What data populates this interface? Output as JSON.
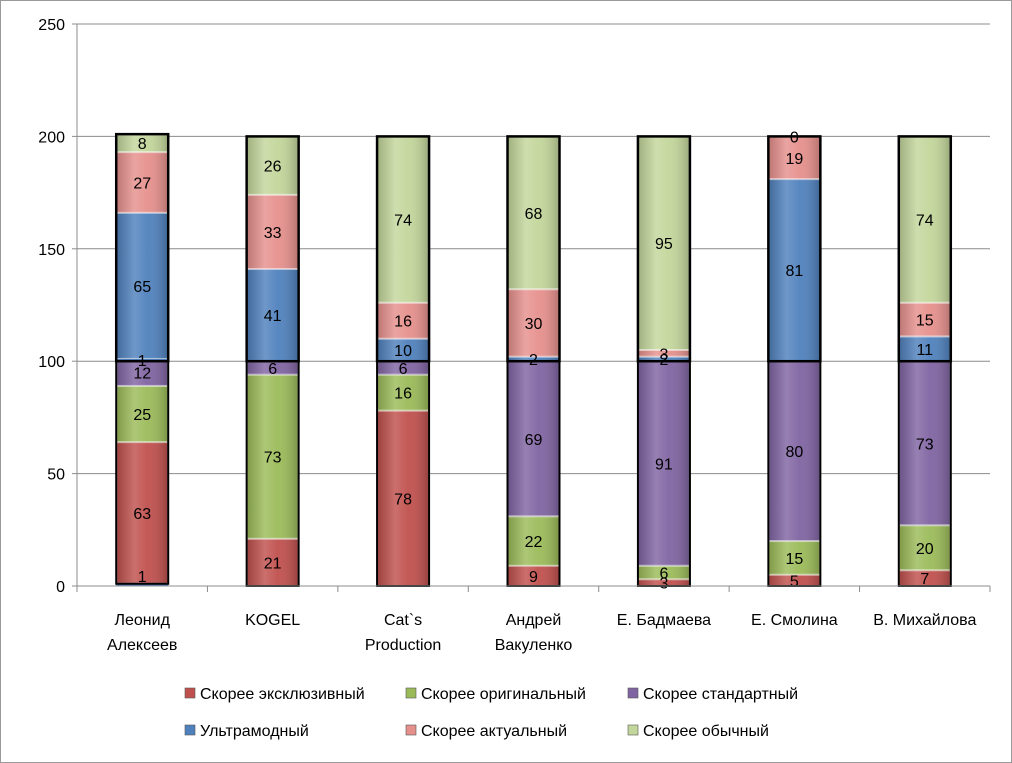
{
  "chart_data": {
    "type": "bar",
    "stacked": true,
    "categories": [
      [
        "Леонид",
        "Алексеев"
      ],
      [
        "KOGEL"
      ],
      [
        "Cat`s",
        "Production"
      ],
      [
        "Андрей",
        "Вакуленко"
      ],
      [
        "Е. Бадмаева"
      ],
      [
        "Е. Смолина"
      ],
      [
        "В. Михайлова"
      ]
    ],
    "ylim": [
      0,
      250
    ],
    "yticks": [
      0,
      50,
      100,
      150,
      200,
      250
    ],
    "grid": true,
    "legend_position": "bottom",
    "groups": [
      {
        "series": [
          {
            "name": "Скорее эксклюзивный",
            "color": "#c0504d",
            "values": [
              63,
              21,
              78,
              9,
              3,
              5,
              7
            ]
          },
          {
            "name": "Скорее оригинальный",
            "color": "#9bbb59",
            "values": [
              25,
              73,
              16,
              22,
              6,
              15,
              20
            ]
          },
          {
            "name": "Скорее стандартный",
            "color": "#8064a2",
            "values": [
              12,
              6,
              6,
              69,
              91,
              80,
              73
            ]
          }
        ],
        "base_values": [
          1,
          0,
          0,
          0,
          0,
          0,
          0
        ],
        "base_labels": [
          "1",
          "",
          "",
          "",
          "",
          "",
          ""
        ]
      },
      {
        "series": [
          {
            "name": "Ультрамодный",
            "color": "#4f81bd",
            "values": [
              65,
              41,
              10,
              2,
              2,
              81,
              11
            ]
          },
          {
            "name": "Скорее актуальный",
            "color": "#e6908c",
            "values": [
              27,
              33,
              16,
              30,
              3,
              19,
              15
            ]
          },
          {
            "name": "Скорее обычный",
            "color": "#c3d69b",
            "values": [
              8,
              26,
              74,
              68,
              95,
              0,
              74
            ]
          }
        ],
        "base_values": [
          1,
          0,
          0,
          0,
          0,
          0,
          0
        ],
        "base_labels": [
          "1",
          "",
          "",
          "",
          "",
          "",
          ""
        ]
      }
    ],
    "legend": [
      "Скорее эксклюзивный",
      "Скорее оригинальный",
      "Скорее стандартный",
      "Ультрамодный",
      "Скорее актуальный",
      "Скорее обычный"
    ]
  }
}
